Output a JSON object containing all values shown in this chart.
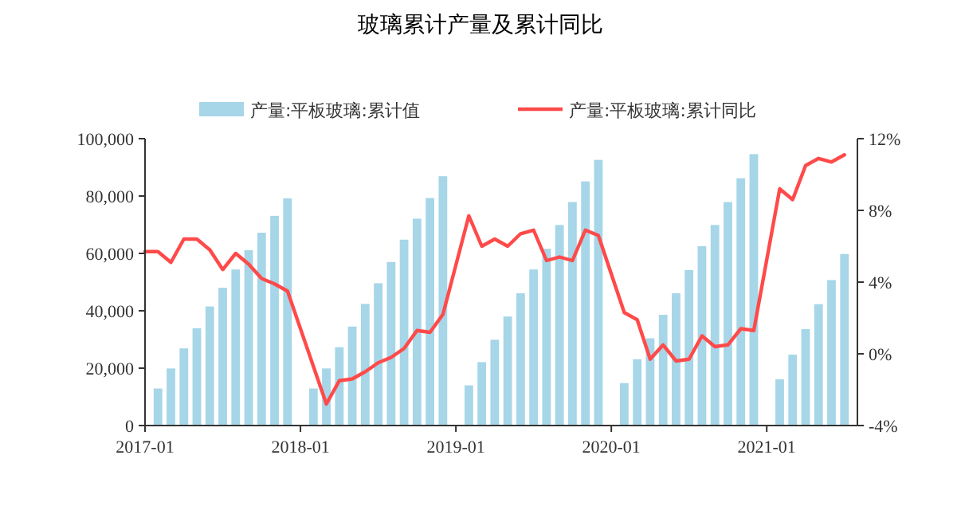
{
  "chart_data": {
    "type": "bar",
    "title": "玻璃累计产量及累计同比",
    "xlim": [
      "2017-01",
      "2021-08"
    ],
    "xticks": [
      "2017-01",
      "2018-01",
      "2019-01",
      "2020-01",
      "2021-01"
    ],
    "ylim": [
      0,
      100000
    ],
    "yticks": [
      0,
      {
        "value": 20000,
        "label": "20,000"
      },
      {
        "value": 40000,
        "label": "40,000"
      },
      {
        "value": 60000,
        "label": "60,000"
      },
      {
        "value": 80000,
        "label": "80,000"
      },
      {
        "value": 100000,
        "label": "100,000"
      }
    ],
    "y2lim": [
      -4,
      12
    ],
    "y2ticks": [
      {
        "value": -4,
        "label": "-4%"
      },
      {
        "value": 0,
        "label": "0%"
      },
      {
        "value": 4,
        "label": "4%"
      },
      {
        "value": 8,
        "label": "8%"
      },
      {
        "value": 12,
        "label": "12%"
      }
    ],
    "legend": "top",
    "grid": false,
    "series": [
      {
        "name": "产量:平板玻璃:累计值",
        "color": "#a6d6e8",
        "x": [
          "2017-02",
          "2017-03",
          "2017-04",
          "2017-05",
          "2017-06",
          "2017-07",
          "2017-08",
          "2017-09",
          "2017-10",
          "2017-11",
          "2017-12",
          "2018-02",
          "2018-03",
          "2018-04",
          "2018-05",
          "2018-06",
          "2018-07",
          "2018-08",
          "2018-09",
          "2018-10",
          "2018-11",
          "2018-12",
          "2019-02",
          "2019-03",
          "2019-04",
          "2019-05",
          "2019-06",
          "2019-07",
          "2019-08",
          "2019-09",
          "2019-10",
          "2019-11",
          "2019-12",
          "2020-02",
          "2020-03",
          "2020-04",
          "2020-05",
          "2020-06",
          "2020-07",
          "2020-08",
          "2020-09",
          "2020-10",
          "2020-11",
          "2020-12",
          "2021-02",
          "2021-03",
          "2021-04",
          "2021-05",
          "2021-06",
          "2021-07"
        ],
        "values": [
          12900,
          19900,
          26900,
          33900,
          41500,
          48000,
          54400,
          61100,
          67200,
          73100,
          79200,
          12900,
          19900,
          27300,
          34500,
          42400,
          49600,
          57000,
          64800,
          72100,
          79300,
          86900,
          14000,
          22100,
          29900,
          38000,
          46100,
          54400,
          61600,
          69900,
          77900,
          85100,
          92600,
          14800,
          23100,
          30400,
          38600,
          46100,
          54200,
          62500,
          69900,
          77900,
          86200,
          94600,
          16100,
          24700,
          33600,
          42300,
          50700,
          59800
        ]
      },
      {
        "name": "产量:平板玻璃:累计同比",
        "type": "line",
        "axis": "y2",
        "color": "#ff4a4a",
        "marker": "none",
        "line_style": "solid",
        "x": [
          "2017-01",
          "2017-02",
          "2017-03",
          "2017-04",
          "2017-05",
          "2017-06",
          "2017-07",
          "2017-08",
          "2017-09",
          "2017-10",
          "2017-11",
          "2017-12",
          "2018-03",
          "2018-04",
          "2018-05",
          "2018-06",
          "2018-07",
          "2018-08",
          "2018-09",
          "2018-10",
          "2018-11",
          "2018-12",
          "2019-02",
          "2019-03",
          "2019-04",
          "2019-05",
          "2019-06",
          "2019-07",
          "2019-08",
          "2019-09",
          "2019-10",
          "2019-11",
          "2019-12",
          "2020-02",
          "2020-03",
          "2020-04",
          "2020-05",
          "2020-06",
          "2020-07",
          "2020-08",
          "2020-09",
          "2020-10",
          "2020-11",
          "2020-12",
          "2021-02",
          "2021-03",
          "2021-04",
          "2021-05",
          "2021-06",
          "2021-07"
        ],
        "values": [
          5.7,
          5.7,
          5.1,
          6.4,
          6.4,
          5.8,
          4.7,
          5.6,
          5.0,
          4.2,
          3.9,
          3.5,
          -2.8,
          -1.5,
          -1.4,
          -1.0,
          -0.5,
          -0.2,
          0.3,
          1.3,
          1.2,
          2.2,
          7.7,
          6.0,
          6.4,
          6.0,
          6.7,
          6.9,
          5.2,
          5.4,
          5.2,
          6.9,
          6.6,
          2.3,
          1.9,
          -0.3,
          0.5,
          -0.4,
          -0.3,
          1.0,
          0.4,
          0.5,
          1.4,
          1.3,
          9.2,
          8.6,
          10.5,
          10.9,
          10.7,
          11.1
        ]
      }
    ]
  }
}
